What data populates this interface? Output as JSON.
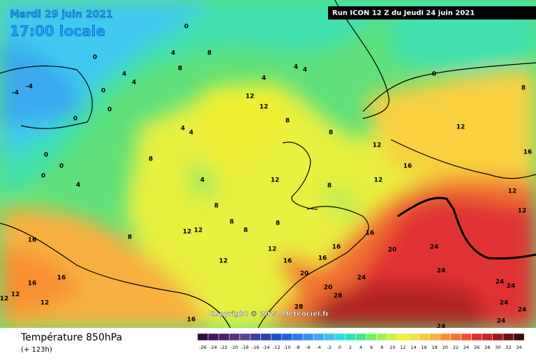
{
  "header": {
    "date": "Mardi 29 juin 2021",
    "time": "17:00 locale",
    "run": "Run ICON 12 Z du Jeudi 24 juin 2021"
  },
  "copyright": "Copyright © 2021 Meteociel.fr",
  "footer": {
    "title": "Température 850hPa",
    "lead": "(+ 123h)"
  },
  "legend": {
    "values": [
      -26,
      -24,
      -22,
      -20,
      -18,
      -16,
      -14,
      -12,
      -10,
      -8,
      -6,
      -4,
      -2,
      0,
      2,
      4,
      6,
      8,
      10,
      12,
      14,
      16,
      18,
      20,
      22,
      24,
      26,
      28,
      30,
      32,
      34
    ],
    "colors": [
      "#2b0a3d",
      "#40145a",
      "#4b1d70",
      "#55307f",
      "#5a4690",
      "#3c3c9a",
      "#2a3fb0",
      "#1f50c8",
      "#2060e0",
      "#2a78f0",
      "#3a90f5",
      "#40a8f5",
      "#40c0f0",
      "#30d8e8",
      "#30e0c0",
      "#40e890",
      "#70f060",
      "#a0f050",
      "#d0f040",
      "#f0f030",
      "#f8e040",
      "#f8c840",
      "#f8b040",
      "#f89030",
      "#f87030",
      "#f05030",
      "#e03030",
      "#c82828",
      "#a01818",
      "#701010",
      "#400808"
    ]
  },
  "map_labels": [
    "0",
    "0",
    "-4",
    "-4",
    "0",
    "0",
    "0",
    "0",
    "0",
    "0",
    "4",
    "4",
    "4",
    "4",
    "4",
    "4",
    "4",
    "8",
    "8",
    "8",
    "8",
    "8",
    "8",
    "8",
    "8",
    "8",
    "8",
    "8",
    "4",
    "4",
    "4",
    "12",
    "12",
    "12",
    "12",
    "12",
    "12",
    "12",
    "12",
    "12",
    "12",
    "12",
    "12",
    "16",
    "16",
    "16",
    "16",
    "16",
    "16",
    "16",
    "16",
    "16",
    "16",
    "12",
    "12",
    "12",
    "20",
    "20",
    "20",
    "28",
    "28",
    "24",
    "24",
    "24",
    "24",
    "24",
    "24",
    "24",
    "24",
    "24",
    "8",
    "0"
  ]
}
